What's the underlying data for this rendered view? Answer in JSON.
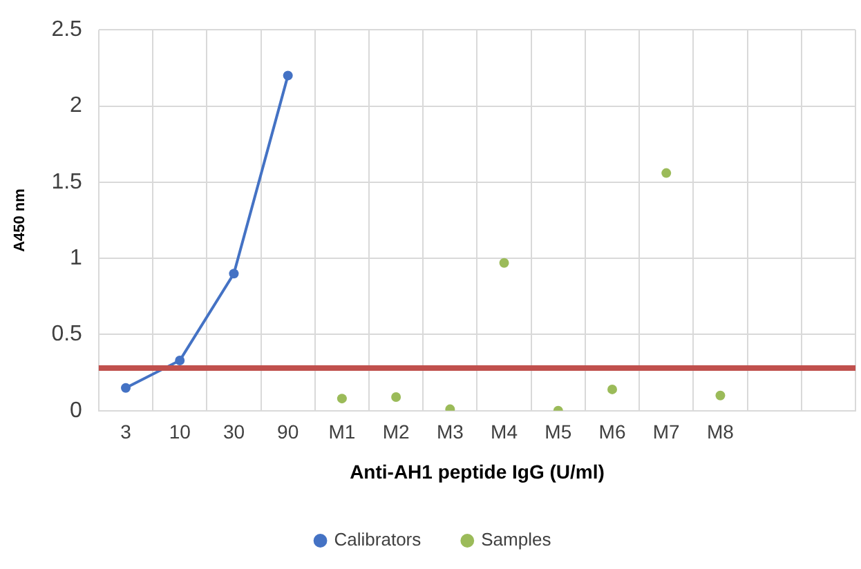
{
  "chart_data": {
    "type": "line",
    "xlabel": "Anti-AH1 peptide IgG (U/ml)",
    "ylabel": "A450 nm",
    "categories": [
      "3",
      "10",
      "30",
      "90",
      "M1",
      "M2",
      "M3",
      "M4",
      "M5",
      "M6",
      "M7",
      "M8",
      null,
      null
    ],
    "series": [
      {
        "name": "Calibrators",
        "type": "line",
        "color": "#4472c4",
        "values": [
          0.15,
          0.33,
          0.9,
          2.2,
          null,
          null,
          null,
          null,
          null,
          null,
          null,
          null,
          null,
          null
        ]
      },
      {
        "name": "Samples",
        "type": "scatter",
        "color": "#9bbb59",
        "values": [
          null,
          null,
          null,
          null,
          0.08,
          0.09,
          0.01,
          0.97,
          0,
          0.14,
          1.56,
          0.1,
          null,
          null
        ]
      }
    ],
    "ylim": [
      0,
      2.5
    ],
    "yticks": [
      {
        "value": 0,
        "label": "0"
      },
      {
        "value": 0.5,
        "label": "0.5"
      },
      {
        "value": 1,
        "label": "1"
      },
      {
        "value": 1.5,
        "label": "1.5"
      },
      {
        "value": 2,
        "label": "2"
      },
      {
        "value": 2.5,
        "label": "2.5"
      }
    ],
    "ref_lines": [
      {
        "axis": "y",
        "value": 0.28,
        "color": "#c0504d"
      }
    ],
    "grid": true,
    "legend": "bottom",
    "marker": "circle"
  }
}
